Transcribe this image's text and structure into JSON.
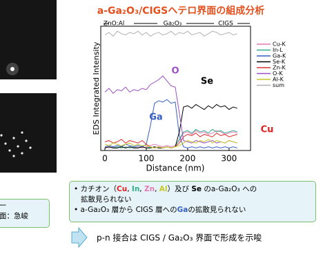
{
  "chart_data": {
    "type": "line",
    "title": "a-Ga₂O₃/CIGSヘテロ界面の組成分析",
    "x_label": "Distance (nm)",
    "y_label": "EDS Integrated Intensity",
    "region_labels": [
      "ZnO:Al",
      "Ga₂O₃",
      "CIGS"
    ],
    "annotations": [
      {
        "text": "O",
        "color": "#9b4fc4"
      },
      {
        "text": "Ga",
        "color": "#3560c0"
      },
      {
        "text": "Se",
        "color": "#000000"
      },
      {
        "text": "Cu",
        "color": "#e02020"
      }
    ],
    "xlim": [
      -10,
      352
    ],
    "ylim": [
      0,
      100
    ],
    "xticks": [
      0,
      100,
      200,
      300
    ],
    "x": [
      0,
      10,
      20,
      30,
      40,
      50,
      60,
      70,
      80,
      90,
      100,
      110,
      120,
      130,
      140,
      150,
      160,
      170,
      180,
      190,
      200,
      210,
      220,
      230,
      240,
      250,
      260,
      270,
      280,
      290,
      300,
      310,
      320
    ],
    "series": [
      {
        "name": "Cu-K",
        "color": "#e27ab4",
        "values": [
          3,
          2,
          3,
          2,
          3,
          2,
          3,
          2,
          3,
          2,
          3,
          4,
          5,
          4,
          3,
          4,
          3,
          4,
          8,
          14,
          15,
          13,
          16,
          14,
          15,
          13,
          14,
          16,
          15,
          13,
          14,
          15,
          14
        ]
      },
      {
        "name": "In-L",
        "color": "#2fae8a",
        "values": [
          2,
          3,
          2,
          3,
          2,
          3,
          2,
          3,
          2,
          3,
          2,
          3,
          2,
          3,
          2,
          3,
          2,
          3,
          9,
          15,
          16,
          14,
          17,
          15,
          16,
          14,
          17,
          15,
          16,
          14,
          15,
          16,
          15
        ]
      },
      {
        "name": "Ga-K",
        "color": "#3560c0",
        "values": [
          3,
          4,
          3,
          4,
          3,
          5,
          4,
          3,
          4,
          3,
          5,
          20,
          38,
          40,
          39,
          41,
          38,
          39,
          12,
          3,
          2,
          3,
          2,
          3,
          2,
          3,
          2,
          3,
          2,
          3,
          2,
          3,
          2
        ]
      },
      {
        "name": "Se-K",
        "color": "#000000",
        "values": [
          2,
          3,
          2,
          2,
          3,
          2,
          3,
          2,
          2,
          3,
          2,
          2,
          3,
          2,
          2,
          3,
          2,
          3,
          15,
          35,
          36,
          34,
          37,
          35,
          33,
          36,
          34,
          37,
          35,
          36,
          33,
          35,
          34
        ]
      },
      {
        "name": "Zn-K",
        "color": "#e03030",
        "values": [
          7,
          8,
          6,
          7,
          9,
          6,
          8,
          7,
          6,
          8,
          5,
          3,
          2,
          3,
          2,
          3,
          2,
          3,
          6,
          11,
          13,
          12,
          14,
          11,
          13,
          12,
          11,
          14,
          12,
          13,
          11,
          12,
          13
        ]
      },
      {
        "name": "O-K",
        "color": "#9b4fc4",
        "values": [
          47,
          50,
          46,
          49,
          48,
          51,
          47,
          49,
          48,
          50,
          49,
          53,
          55,
          57,
          60,
          56,
          52,
          51,
          30,
          8,
          7,
          6,
          8,
          7,
          6,
          7,
          8,
          6,
          7,
          6,
          8,
          7,
          6
        ]
      },
      {
        "name": "Al-K",
        "color": "#c8c828",
        "values": [
          5,
          4,
          6,
          5,
          4,
          5,
          6,
          4,
          5,
          4,
          4,
          3,
          2,
          3,
          2,
          3,
          2,
          3,
          4,
          6,
          8,
          7,
          6,
          8,
          7,
          9,
          6,
          8,
          7,
          6,
          8,
          7,
          6
        ]
      },
      {
        "name": "sum",
        "color": "#b0b0b0",
        "values": [
          93,
          95,
          92,
          96,
          94,
          93,
          95,
          94,
          96,
          93,
          95,
          92,
          94,
          95,
          93,
          94,
          96,
          93,
          95,
          94,
          96,
          93,
          94,
          95,
          92,
          94,
          96,
          95,
          93,
          94,
          95,
          93,
          94
        ]
      }
    ]
  },
  "summary": {
    "bullet1": [
      "カチオン（",
      "Cu",
      ", ",
      "In",
      ", ",
      "Zn",
      ", ",
      "Al",
      "）及び ",
      "Se",
      " のa-Ga₂O₃ への",
      "拡散見られない"
    ],
    "bullet2": [
      "a-Ga₂O₃ 層から CIGS 層への",
      "Ga",
      "の拡散見られない"
    ]
  },
  "conclusion": "p-n 接合は CIGS / Ga₂O₃ 界面で形成を示唆",
  "left_box": {
    "line1": "ー",
    "line2": "面：急峻"
  }
}
